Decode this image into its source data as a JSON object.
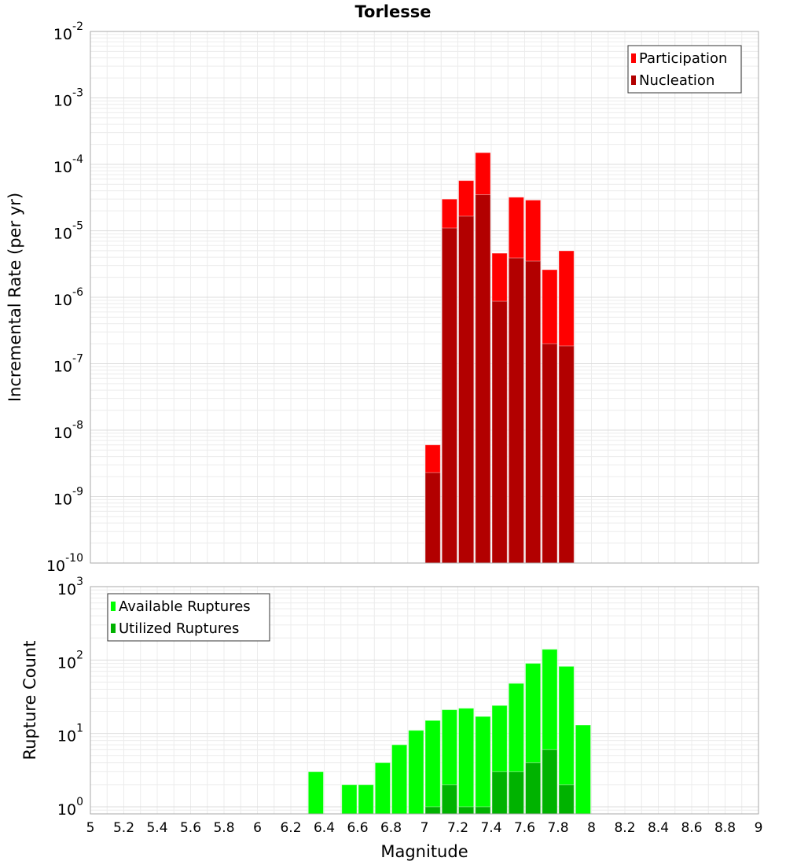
{
  "chart_data": [
    {
      "type": "bar",
      "title": "Torlesse",
      "ylabel": "Incremental Rate (per yr)",
      "xlim": [
        5,
        9
      ],
      "ylim": [
        1e-10,
        0.01
      ],
      "yscale": "log",
      "bin_width": 0.1,
      "x": [
        7.05,
        7.15,
        7.25,
        7.35,
        7.45,
        7.55,
        7.65,
        7.75,
        7.85
      ],
      "series": [
        {
          "name": "Participation",
          "color": "#ff0000",
          "values": [
            6e-09,
            3e-05,
            5.7e-05,
            0.00015,
            4.6e-06,
            3.2e-05,
            2.9e-05,
            2.6e-06,
            5e-06
          ]
        },
        {
          "name": "Nucleation",
          "color": "#b20000",
          "values": [
            2.3e-09,
            1.1e-05,
            1.66e-05,
            3.5e-05,
            8.7e-07,
            3.9e-06,
            3.5e-06,
            2e-07,
            1.85e-07
          ]
        }
      ],
      "ytick_exponents": [
        "-2",
        "-3",
        "-4",
        "-5",
        "-6",
        "-7",
        "-8",
        "-9",
        "-10"
      ],
      "legend": "top-right"
    },
    {
      "type": "bar",
      "xlabel": "Magnitude",
      "ylabel": "Rupture Count",
      "xlim": [
        5,
        9
      ],
      "ylim": [
        0.8,
        1000
      ],
      "yscale": "log",
      "bin_width": 0.1,
      "x": [
        6.35,
        6.55,
        6.65,
        6.75,
        6.85,
        6.95,
        7.05,
        7.15,
        7.25,
        7.35,
        7.45,
        7.55,
        7.65,
        7.75,
        7.85,
        7.95
      ],
      "series": [
        {
          "name": "Available Ruptures",
          "color": "#00ff00",
          "values": [
            3,
            2,
            2,
            4,
            7,
            11,
            15,
            21,
            22,
            17,
            24,
            48,
            90,
            140,
            82,
            13
          ]
        },
        {
          "name": "Utilized Ruptures",
          "color": "#00b200",
          "values": [
            0,
            0,
            0,
            0,
            0,
            0,
            1,
            2,
            1,
            1,
            3,
            3,
            4,
            6,
            2,
            0
          ]
        }
      ],
      "ytick_exponents": [
        "3",
        "2",
        "1",
        "0"
      ],
      "xtick_labels": [
        "5",
        "5.2",
        "5.4",
        "5.6",
        "5.8",
        "6",
        "6.2",
        "6.4",
        "6.6",
        "6.8",
        "7",
        "7.2",
        "7.4",
        "7.6",
        "7.8",
        "8",
        "8.2",
        "8.4",
        "8.6",
        "8.8",
        "9"
      ],
      "legend": "top-left"
    }
  ],
  "tick_base": "10"
}
